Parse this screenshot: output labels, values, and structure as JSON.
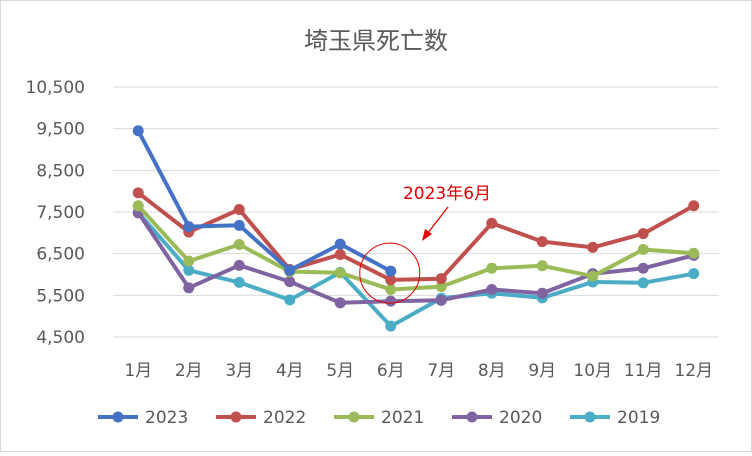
{
  "chart_data": {
    "type": "line",
    "title": "埼玉県死亡数",
    "xlabel": "",
    "ylabel": "",
    "categories": [
      "1月",
      "2月",
      "3月",
      "4月",
      "5月",
      "6月",
      "7月",
      "8月",
      "9月",
      "10月",
      "11月",
      "12月"
    ],
    "ylim": [
      4500,
      10500
    ],
    "yticks": [
      4500,
      5500,
      6500,
      7500,
      8500,
      9500,
      10500
    ],
    "ytick_labels": [
      "4,500",
      "5,500",
      "6,500",
      "7,500",
      "8,500",
      "9,500",
      "10,500"
    ],
    "grid": true,
    "legend_position": "bottom",
    "series": [
      {
        "name": "2023",
        "color": "#4472c4",
        "values": [
          9450,
          7150,
          7180,
          6100,
          6730,
          6080,
          null,
          null,
          null,
          null,
          null,
          null
        ]
      },
      {
        "name": "2022",
        "color": "#c0504d",
        "values": [
          7960,
          7020,
          7560,
          6120,
          6480,
          5870,
          5900,
          7230,
          6790,
          6650,
          6980,
          7650
        ]
      },
      {
        "name": "2021",
        "color": "#9bbb59",
        "values": [
          7650,
          6320,
          6720,
          6070,
          6040,
          5640,
          5710,
          6150,
          6210,
          5960,
          6600,
          6510
        ]
      },
      {
        "name": "2020",
        "color": "#8064a2",
        "values": [
          7480,
          5680,
          6220,
          5830,
          5320,
          5360,
          5380,
          5640,
          5550,
          6020,
          6150,
          6460
        ]
      },
      {
        "name": "2019",
        "color": "#4bacc6",
        "values": [
          7490,
          6100,
          5810,
          5390,
          6050,
          4760,
          5430,
          5550,
          5440,
          5820,
          5800,
          6020
        ]
      }
    ],
    "annotation": {
      "text": "2023年6月",
      "color": "#e00000",
      "target_category": "6月",
      "target_value": 6080
    }
  }
}
